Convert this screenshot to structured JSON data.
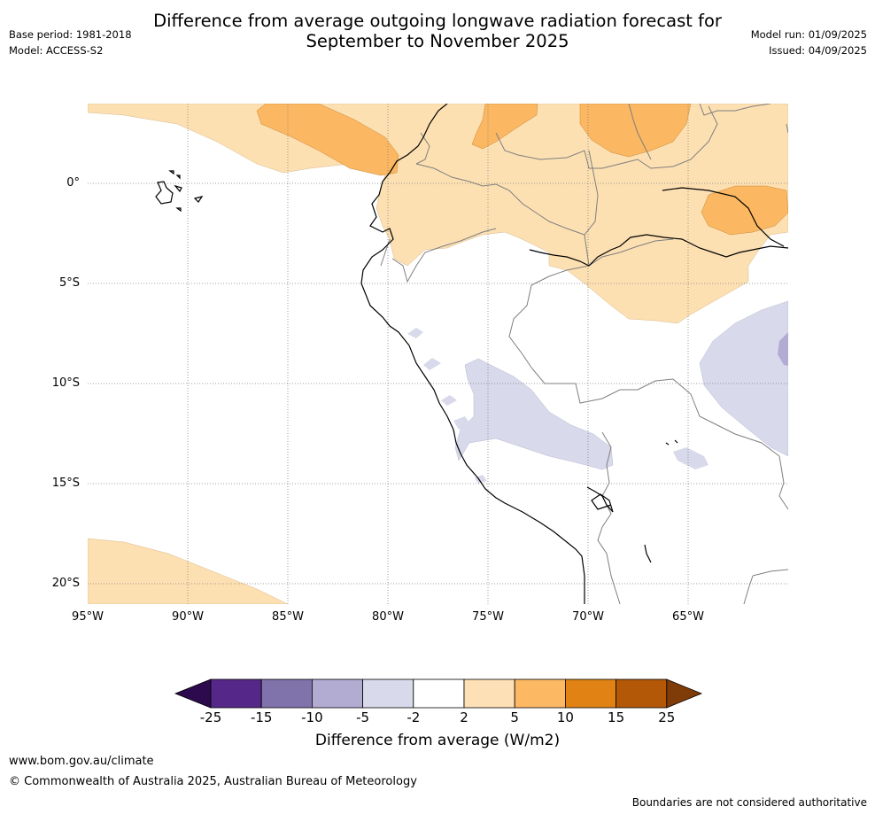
{
  "header": {
    "base_period": "Base period: 1981-2018",
    "model": "Model: ACCESS-S2",
    "title_line1": "Difference from average outgoing longwave radiation forecast for",
    "title_line2": "September to November 2025",
    "model_run": "Model run: 01/09/2025",
    "issued": "Issued: 04/09/2025"
  },
  "map": {
    "lat_labels": [
      "0°",
      "5°S",
      "10°S",
      "15°S",
      "20°S"
    ],
    "lon_labels": [
      "95°W",
      "90°W",
      "85°W",
      "80°W",
      "75°W",
      "70°W",
      "65°W"
    ],
    "fill_colors": {
      "anomaly_2_5": "#fde0b2",
      "anomaly_5_10": "#fbb761",
      "anomaly_neg2_neg5": "#d8d9ea",
      "anomaly_neg5_neg10": "#b2abd2",
      "coastline": "#000000",
      "borders": "#808080"
    }
  },
  "colorbar": {
    "title": "Difference from average (W/m2)",
    "ticks": [
      "-25",
      "-15",
      "-10",
      "-5",
      "-2",
      "2",
      "5",
      "10",
      "15",
      "25"
    ],
    "colors": [
      "#2d0a4e",
      "#542788",
      "#8073ac",
      "#b2abd2",
      "#d8daeb",
      "#ffffff",
      "#fee0b6",
      "#fdb863",
      "#e08214",
      "#b35806",
      "#7f3b08"
    ]
  },
  "footer": {
    "url": "www.bom.gov.au/climate",
    "copyright": "© Commonwealth of Australia 2025, Australian Bureau of Meteorology",
    "disclaimer": "Boundaries are not considered authoritative"
  }
}
